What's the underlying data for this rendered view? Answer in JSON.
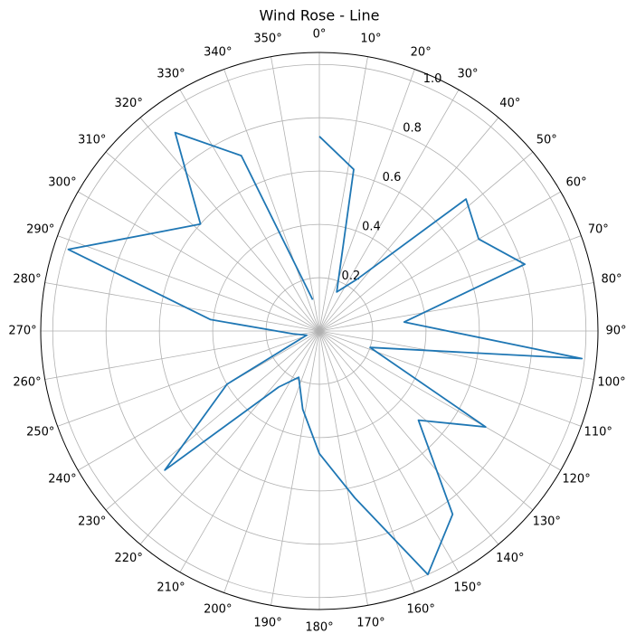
{
  "chart_data": {
    "type": "polar-line",
    "title": "Wind Rose - Line",
    "x": [
      0,
      12,
      24,
      36,
      48,
      60,
      72,
      84,
      96,
      108,
      120,
      132,
      144,
      156,
      168,
      180,
      192,
      204,
      216,
      228,
      240,
      252,
      264,
      276,
      288,
      300,
      312,
      324,
      336,
      348
    ],
    "series": [
      {
        "color": "#1f77b4",
        "values": [
          0.73,
          0.62,
          0.16,
          0.24,
          0.74,
          0.69,
          0.81,
          0.32,
          0.99,
          0.2,
          0.72,
          0.5,
          0.85,
          1.0,
          0.64,
          0.46,
          0.3,
          0.19,
          0.26,
          0.78,
          0.4,
          0.05,
          0.1,
          0.41,
          0.99,
          0.73,
          0.6,
          0.92,
          0.72,
          0.12
        ]
      }
    ],
    "ylim": [
      0,
      1.045
    ],
    "yticks": [
      0.2,
      0.4,
      0.6,
      0.8,
      {
        "value": 1,
        "label": "1.0"
      }
    ],
    "xticks": [
      {
        "value": 0,
        "label": "0°"
      },
      {
        "value": 10,
        "label": "10°"
      },
      {
        "value": 20,
        "label": "20°"
      },
      {
        "value": 30,
        "label": "30°"
      },
      {
        "value": 40,
        "label": "40°"
      },
      {
        "value": 50,
        "label": "50°"
      },
      {
        "value": 60,
        "label": "60°"
      },
      {
        "value": 70,
        "label": "70°"
      },
      {
        "value": 80,
        "label": "80°"
      },
      {
        "value": 90,
        "label": "90°"
      },
      {
        "value": 100,
        "label": "100°"
      },
      {
        "value": 110,
        "label": "110°"
      },
      {
        "value": 120,
        "label": "120°"
      },
      {
        "value": 130,
        "label": "130°"
      },
      {
        "value": 140,
        "label": "140°"
      },
      {
        "value": 150,
        "label": "150°"
      },
      {
        "value": 160,
        "label": "160°"
      },
      {
        "value": 170,
        "label": "170°"
      },
      {
        "value": 180,
        "label": "180°"
      },
      {
        "value": 190,
        "label": "190°"
      },
      {
        "value": 200,
        "label": "200°"
      },
      {
        "value": 210,
        "label": "210°"
      },
      {
        "value": 220,
        "label": "220°"
      },
      {
        "value": 230,
        "label": "230°"
      },
      {
        "value": 240,
        "label": "240°"
      },
      {
        "value": 250,
        "label": "250°"
      },
      {
        "value": 260,
        "label": "260°"
      },
      {
        "value": 270,
        "label": "270°"
      },
      {
        "value": 280,
        "label": "280°"
      },
      {
        "value": 290,
        "label": "290°"
      },
      {
        "value": 300,
        "label": "300°"
      },
      {
        "value": 310,
        "label": "310°"
      },
      {
        "value": 320,
        "label": "320°"
      },
      {
        "value": 330,
        "label": "330°"
      },
      {
        "value": 340,
        "label": "340°"
      },
      {
        "value": 350,
        "label": "350°"
      }
    ],
    "grid": true
  }
}
